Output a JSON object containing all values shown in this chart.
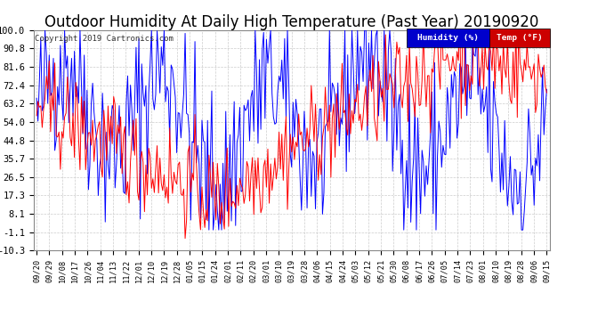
{
  "title": "Outdoor Humidity At Daily High Temperature (Past Year) 20190920",
  "copyright": "Copyright 2019 Cartronics.com",
  "yticks": [
    100.0,
    90.8,
    81.6,
    72.4,
    63.2,
    54.0,
    44.8,
    35.7,
    26.5,
    17.3,
    8.1,
    -1.1,
    -10.3
  ],
  "ylim": [
    -10.3,
    100.0
  ],
  "xtick_labels": [
    "09/20",
    "09/29",
    "10/08",
    "10/17",
    "10/26",
    "11/04",
    "11/13",
    "11/22",
    "12/01",
    "12/10",
    "12/19",
    "12/28",
    "01/05",
    "01/15",
    "01/24",
    "02/01",
    "02/11",
    "02/20",
    "03/01",
    "03/10",
    "03/19",
    "03/28",
    "04/06",
    "04/15",
    "04/24",
    "05/03",
    "05/12",
    "05/21",
    "05/30",
    "06/08",
    "06/17",
    "06/26",
    "07/05",
    "07/14",
    "07/23",
    "08/01",
    "08/10",
    "08/19",
    "08/28",
    "09/06",
    "09/15"
  ],
  "humidity_color": "#0000ff",
  "temp_color": "#ff0000",
  "background_color": "#ffffff",
  "grid_color": "#cccccc",
  "title_fontsize": 12,
  "legend_humidity_bg": "#0000cc",
  "legend_temp_bg": "#cc0000",
  "legend_text_color": "#ffffff"
}
